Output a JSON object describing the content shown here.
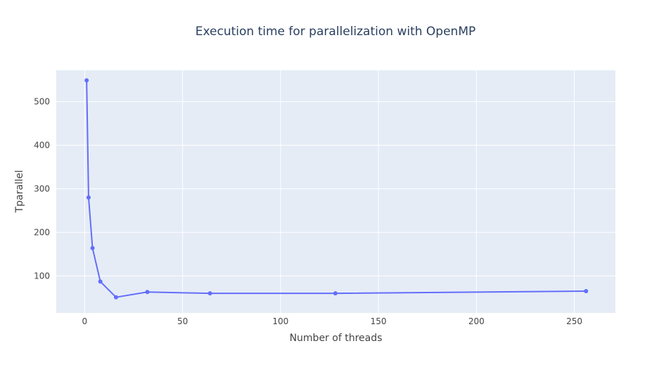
{
  "chart_data": {
    "type": "line",
    "title": "Execution time for parallelization with OpenMP",
    "xlabel": "Number of threads",
    "ylabel": "Tparallel",
    "x": [
      1,
      2,
      4,
      8,
      16,
      32,
      64,
      128,
      256
    ],
    "series": [
      {
        "values": [
          549,
          280,
          164,
          87,
          51,
          63,
          60,
          60,
          65
        ],
        "mode": "lines+markers"
      }
    ],
    "xlim": [
      -14.5,
      271
    ],
    "ylim": [
      15,
      572
    ],
    "x_ticks": [
      0,
      50,
      100,
      150,
      200,
      250
    ],
    "y_ticks": [
      100,
      200,
      300,
      400,
      500
    ],
    "grid": true,
    "colors": {
      "plot_background": "#e5ecf6",
      "grid": "#ffffff",
      "line": "#636efa",
      "text": "#444444",
      "title_text": "#2a3f5f"
    }
  }
}
